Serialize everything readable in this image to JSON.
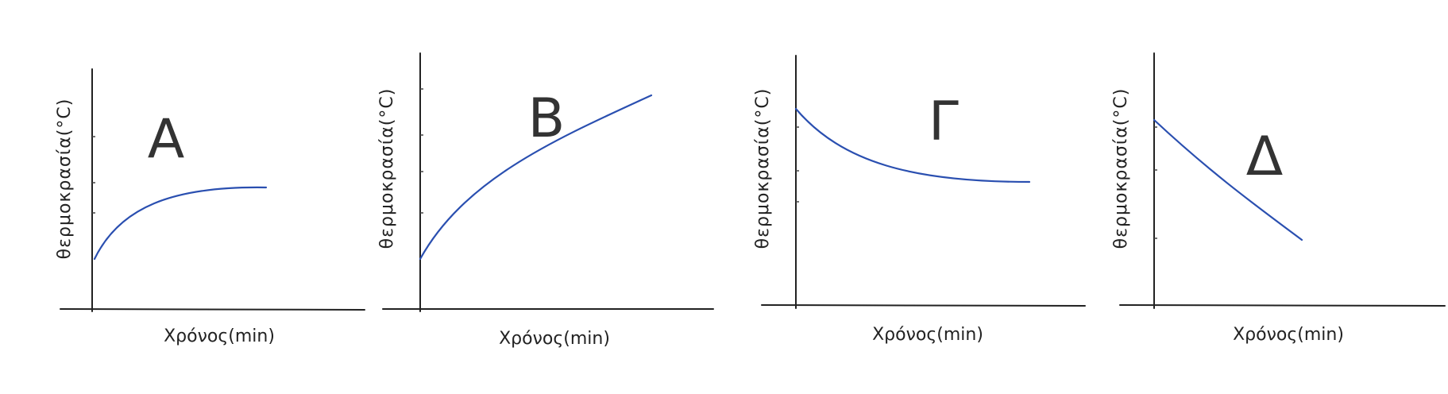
{
  "panels": [
    {
      "label": "Α",
      "x_label": "Χρόνος(min)",
      "y_label": "θερμοκρασία(°C)"
    },
    {
      "label": "Β",
      "x_label": "Χρόνος(min)",
      "y_label": "θερμοκρασία(°C)"
    },
    {
      "label": "Γ",
      "x_label": "Χρόνος(min)",
      "y_label": "θερμοκρασία(°C)"
    },
    {
      "label": "Δ",
      "x_label": "Χρόνος(min)",
      "y_label": "θερμοκρασία(°C)"
    }
  ]
}
